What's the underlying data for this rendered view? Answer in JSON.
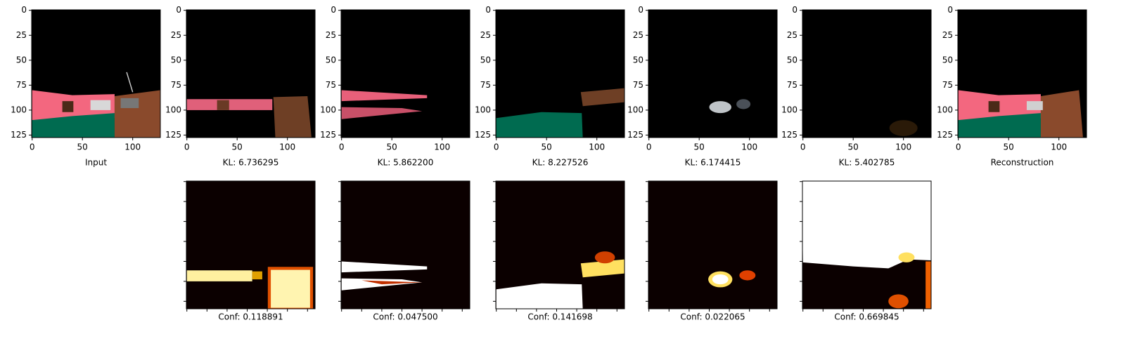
{
  "panels": [
    {
      "label": "Input"
    },
    {
      "label": "KL: 6.736295"
    },
    {
      "label": "KL: 5.862200"
    },
    {
      "label": "KL: 8.227526"
    },
    {
      "label": "KL: 6.174415"
    },
    {
      "label": "KL: 5.402785"
    },
    {
      "label": "Reconstruction"
    }
  ],
  "conf_panels": [
    {
      "label": "Conf: 0.118891"
    },
    {
      "label": "Conf: 0.047500"
    },
    {
      "label": "Conf: 0.141698"
    },
    {
      "label": "Conf: 0.022065"
    },
    {
      "label": "Conf: 0.669845"
    }
  ],
  "axes": {
    "xlim": [
      -0.5,
      127.5
    ],
    "ylim": [
      127.5,
      -0.5
    ],
    "xticks": [
      0,
      50,
      100
    ],
    "yticks": [
      0,
      25,
      50,
      75,
      100,
      125
    ]
  },
  "conf_ticks": [
    0,
    20,
    40,
    60,
    80,
    100,
    120
  ]
}
